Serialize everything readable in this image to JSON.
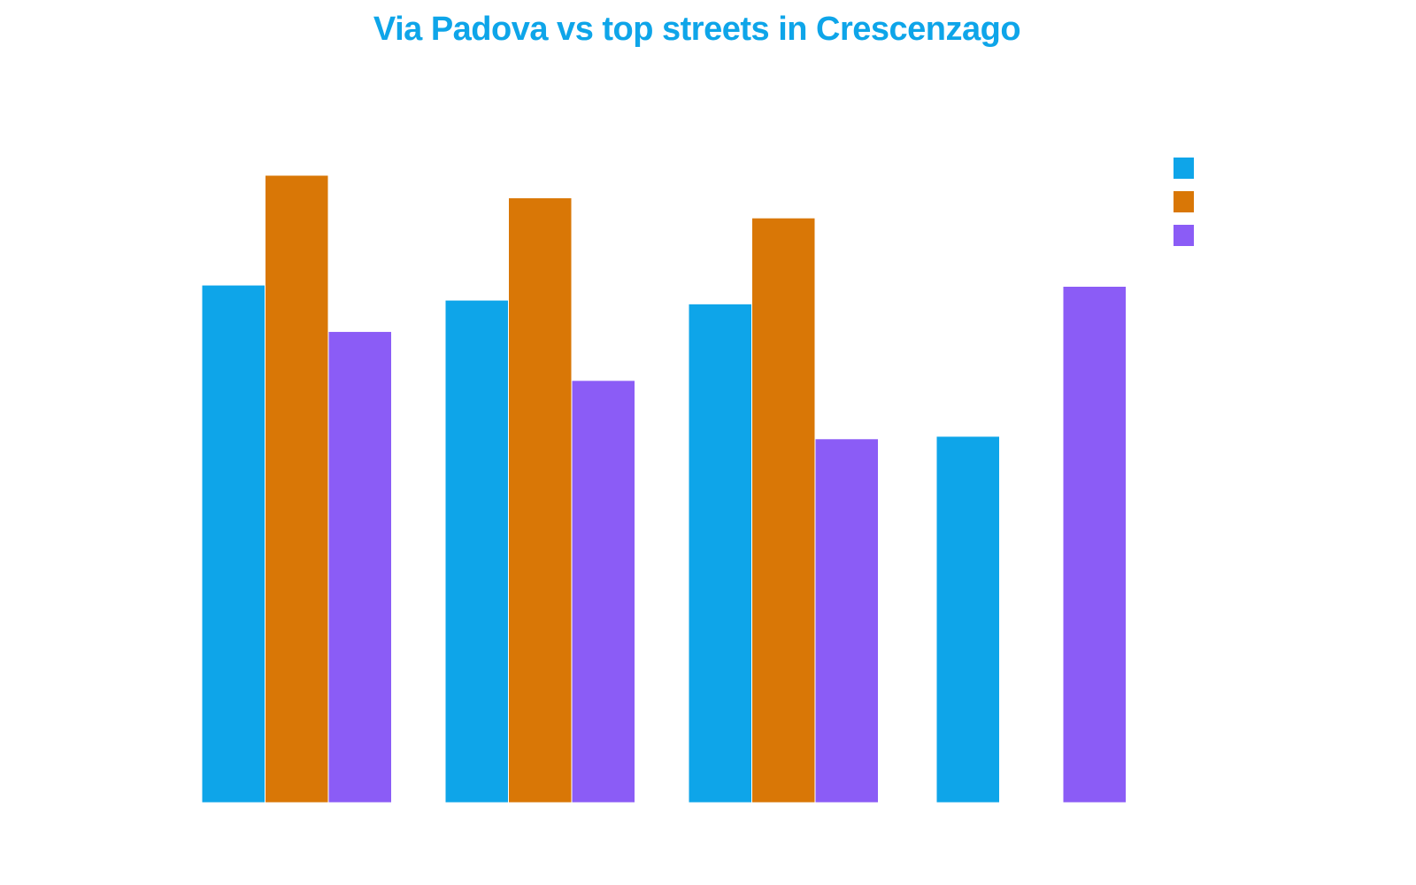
{
  "chart_data": {
    "type": "bar",
    "title": "Via Padova vs top streets in Crescenzago",
    "xlabel": "",
    "ylabel": "",
    "ylim": [
      0,
      100
    ],
    "grid": false,
    "legend_position": "top-right",
    "categories": [
      "",
      "",
      "",
      ""
    ],
    "series": [
      {
        "values": [
          82.5,
          80.1,
          79.5,
          58.4
        ],
        "color": "#0ea5e9"
      },
      {
        "values": [
          100,
          96.4,
          93.2,
          null
        ],
        "color": "#d97706"
      },
      {
        "values": [
          75.1,
          67.3,
          58.0,
          82.3
        ],
        "color": "#8b5cf6"
      }
    ]
  },
  "colors": {
    "title": "#0ea5e9",
    "background": "#ffffff"
  }
}
